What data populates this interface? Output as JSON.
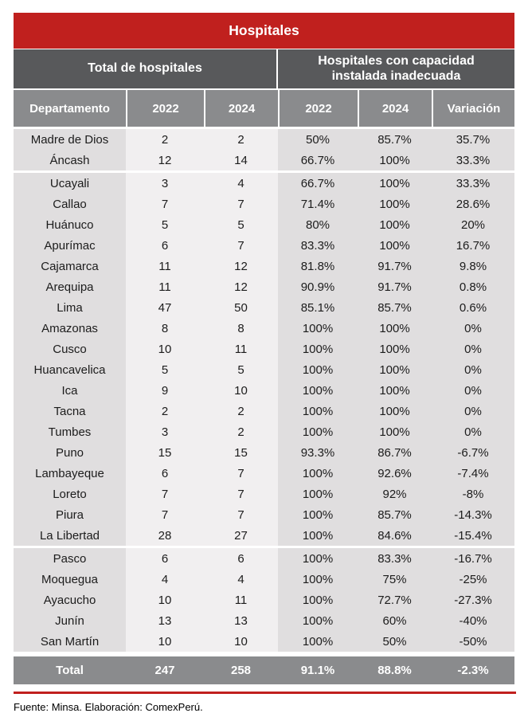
{
  "chart_data": {
    "type": "table",
    "title": "Hospitales",
    "column_groups": {
      "left": "Total de hospitales",
      "right": "Hospitales con capacidad instalada inadecuada"
    },
    "columns": [
      "Departamento",
      "2022",
      "2024",
      "2022",
      "2024",
      "Variación"
    ],
    "rows": [
      [
        "Madre de Dios",
        "2",
        "2",
        "50%",
        "85.7%",
        "35.7%"
      ],
      [
        "Áncash",
        "12",
        "14",
        "66.7%",
        "100%",
        "33.3%"
      ],
      [
        "Ucayali",
        "3",
        "4",
        "66.7%",
        "100%",
        "33.3%"
      ],
      [
        "Callao",
        "7",
        "7",
        "71.4%",
        "100%",
        "28.6%"
      ],
      [
        "Huánuco",
        "5",
        "5",
        "80%",
        "100%",
        "20%"
      ],
      [
        "Apurímac",
        "6",
        "7",
        "83.3%",
        "100%",
        "16.7%"
      ],
      [
        "Cajamarca",
        "11",
        "12",
        "81.8%",
        "91.7%",
        "9.8%"
      ],
      [
        "Arequipa",
        "11",
        "12",
        "90.9%",
        "91.7%",
        "0.8%"
      ],
      [
        "Lima",
        "47",
        "50",
        "85.1%",
        "85.7%",
        "0.6%"
      ],
      [
        "Amazonas",
        "8",
        "8",
        "100%",
        "100%",
        "0%"
      ],
      [
        "Cusco",
        "10",
        "11",
        "100%",
        "100%",
        "0%"
      ],
      [
        "Huancavelica",
        "5",
        "5",
        "100%",
        "100%",
        "0%"
      ],
      [
        "Ica",
        "9",
        "10",
        "100%",
        "100%",
        "0%"
      ],
      [
        "Tacna",
        "2",
        "2",
        "100%",
        "100%",
        "0%"
      ],
      [
        "Tumbes",
        "3",
        "2",
        "100%",
        "100%",
        "0%"
      ],
      [
        "Puno",
        "15",
        "15",
        "93.3%",
        "86.7%",
        "-6.7%"
      ],
      [
        "Lambayeque",
        "6",
        "7",
        "100%",
        "92.6%",
        "-7.4%"
      ],
      [
        "Loreto",
        "7",
        "7",
        "100%",
        "92%",
        "-8%"
      ],
      [
        "Piura",
        "7",
        "7",
        "100%",
        "85.7%",
        "-14.3%"
      ],
      [
        "La Libertad",
        "28",
        "27",
        "100%",
        "84.6%",
        "-15.4%"
      ],
      [
        "Pasco",
        "6",
        "6",
        "100%",
        "83.3%",
        "-16.7%"
      ],
      [
        "Moquegua",
        "4",
        "4",
        "100%",
        "75%",
        "-25%"
      ],
      [
        "Ayacucho",
        "10",
        "11",
        "100%",
        "72.7%",
        "-27.3%"
      ],
      [
        "Junín",
        "13",
        "13",
        "100%",
        "60%",
        "-40%"
      ],
      [
        "San Martín",
        "10",
        "10",
        "100%",
        "50%",
        "-50%"
      ]
    ],
    "total_row": [
      "Total",
      "247",
      "258",
      "91.1%",
      "88.8%",
      "-2.3%"
    ]
  },
  "footer": "Fuente: Minsa. Elaboración: ComexPerú.",
  "colors": {
    "title_red": "#C0201E",
    "group_band_gray": "#58595B",
    "header_gray": "#8A8B8D",
    "body_band_gray": "#E0DEDF",
    "body_band_light": "#F1EFF0"
  }
}
